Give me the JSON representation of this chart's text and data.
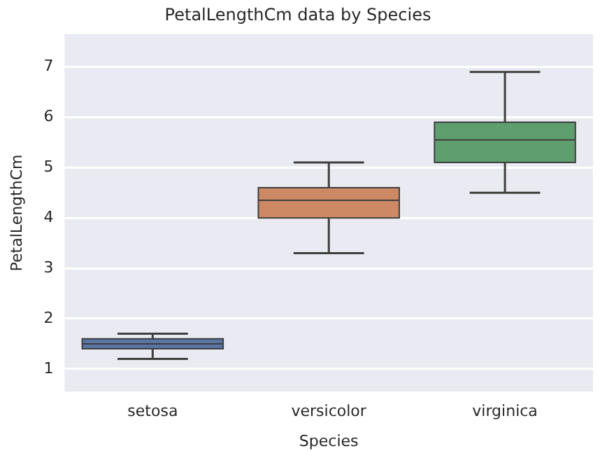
{
  "chart_data": {
    "type": "box",
    "title": "PetalLengthCm data by Species",
    "xlabel": "Species",
    "ylabel": "PetalLengthCm",
    "categories": [
      "setosa",
      "versicolor",
      "virginica"
    ],
    "colors": [
      "#5875a4",
      "#cc8963",
      "#5f9e6e"
    ],
    "boxes": [
      {
        "low": 1.2,
        "q1": 1.4,
        "median": 1.5,
        "q3": 1.6,
        "high": 1.7
      },
      {
        "low": 3.3,
        "q1": 4.0,
        "median": 4.35,
        "q3": 4.6,
        "high": 5.1
      },
      {
        "low": 4.5,
        "q1": 5.1,
        "median": 5.55,
        "q3": 5.9,
        "high": 6.9
      }
    ],
    "ylim": [
      0.55,
      7.65
    ],
    "yticks": [
      1,
      2,
      3,
      4,
      5,
      6,
      7
    ],
    "grid": "y",
    "legend": false
  }
}
